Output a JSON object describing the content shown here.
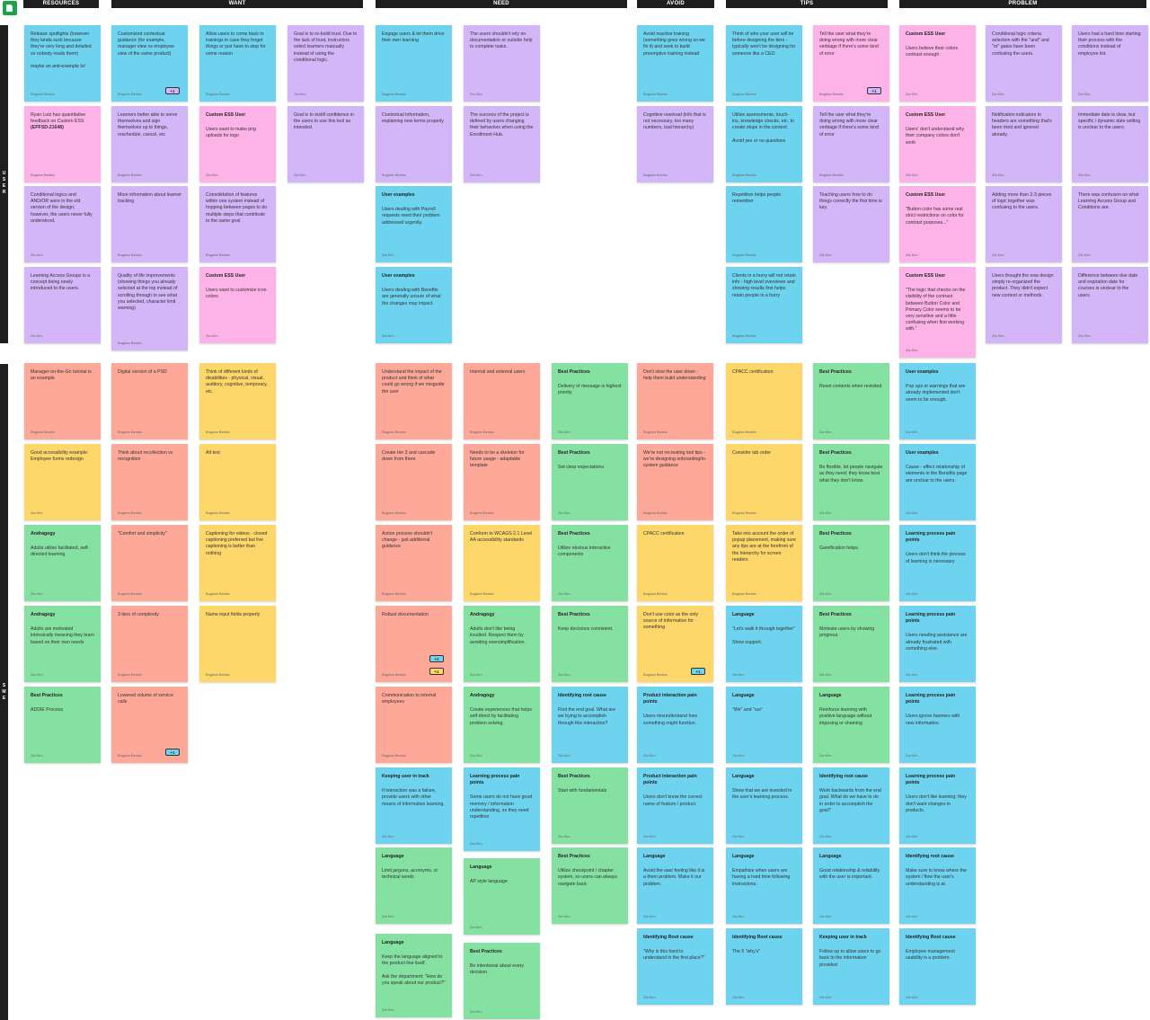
{
  "colors": {
    "blue": "#6dd3ee",
    "pink": "#fdb3e8",
    "purple": "#d3b6f7",
    "salmon": "#fea89a",
    "yellow": "#fdd76a",
    "green": "#85e1a1",
    "header": "#1e1e1e"
  },
  "headers": [
    "RESOURCES",
    "WANT",
    "NEED",
    "AVOID",
    "TIPS",
    "PROBLEM"
  ],
  "rows": [
    "USER",
    "SME"
  ],
  "notes": [
    {
      "c": "blue",
      "b": "Release spotlights (however they kinda suck because they're very long and detailed so nobody reads them)",
      "i": "maybe an anti-example lol",
      "a": "Bogdan Benkic"
    },
    {
      "c": "blue",
      "b": "Customized contextual guidance (for example, manager view vs employee view of the same product)",
      "a": "Bogdan Benkic",
      "badge": "+1",
      "bc": "purple"
    },
    {
      "c": "blue",
      "b": "Allow users to come back to trainings in case they forget things or just have to stop for some reason",
      "a": "Bogdan Benkic"
    },
    {
      "c": "purple",
      "b": "Goal is to re-build trust. Due to the lack of trust, instructors select learners manually instead of using the conditional logic.",
      "a": "Zia Kim"
    },
    {
      "c": "blue",
      "b": "Engage users & let them drive their own learning",
      "a": "Bogdan Benkic"
    },
    {
      "c": "purple",
      "b": "The users shouldn't rely on documentation or outside help to complete tasks.",
      "a": "Zia Kim"
    },
    {
      "c": "blue",
      "b": "Avoid reactive training (something goes wrong so we fix it) and seek to build preemptive training instead",
      "a": "Bogdan Benkic"
    },
    {
      "c": "blue",
      "b": "Think of who your user will be before designing the tiers - typically won't be designing for someone like a CEO",
      "a": "Bogdan Benkic"
    },
    {
      "c": "pink",
      "b": "Tell the user what they're doing wrong with more clear verbiage if there's some kind of error",
      "a": "Bogdan Benkic",
      "badge": "+1",
      "bc": "purple"
    },
    {
      "c": "pink",
      "t": "Custom ESS User",
      "b": "Users believe their colors contrast enough",
      "a": "Zia Kim"
    },
    {
      "c": "purple",
      "b": "Conditional logic criteria selection with the \"and\" and \"or\" gates have been confusing the users.",
      "a": "Zia Kim"
    },
    {
      "c": "purple",
      "b": "Users had a hard time starting their process with the conditions instead of employee list.",
      "a": "Zia Kim"
    },
    {
      "c": "pink",
      "b": "Ryan Lutz has quantitative feedback on Custom ESS",
      "bb": "(EPFSD-21648)",
      "a": "Bogdan Benkic"
    },
    {
      "c": "purple",
      "b": "Learners better able to serve themselves and sign themselves up to things, reschedule, cancel, etc",
      "a": "Bogdan Benkic"
    },
    {
      "c": "pink",
      "t": "Custom ESS User",
      "b": "Users want to make png uploads for logo",
      "a": "Zia Kim"
    },
    {
      "c": "purple",
      "b": "Goal is to instill confidence in the users to use this tool as intended.",
      "a": "Zia Kim"
    },
    {
      "c": "purple",
      "b": "Contextual information, explaining new terms properly",
      "a": "Bogdan Benkic"
    },
    {
      "c": "purple",
      "b": "The success of the project is defined by users changing their behaviors when using the Enrollment Hub.",
      "a": "Zia Kim"
    },
    {
      "c": "purple",
      "b": "Cognitive overload (info that is not necessary, too many numbers, bad hierarchy)",
      "a": "Bogdan Benkic"
    },
    {
      "c": "blue",
      "b": "Utilize assessments, touch-ins, knowledge checks, etc. to create stops in the content",
      "i": "Avoid yes or no questions",
      "a": "Bogdan Benkic"
    },
    {
      "c": "purple",
      "b": "Tell the user what they're doing wrong with more clear verbiage if there's some kind of error",
      "a": "Bogdan Benkic"
    },
    {
      "c": "pink",
      "t": "Custom ESS User",
      "b": "Users' don't understand why their company colors don't work",
      "a": "Zia Kim"
    },
    {
      "c": "purple",
      "b": "Notification indicators in headers are something that's been tried and ignored already.",
      "a": "Zia Kim"
    },
    {
      "c": "purple",
      "b": "Immediate date is clear, but specific / dynamic date setting is unclear to the users.",
      "a": "Zia Kim"
    },
    {
      "c": "purple",
      "b": "Conditional logics and AND/OR were in the old version of the design; however, the users never fully understood.",
      "a": "Zia Kim"
    },
    {
      "c": "purple",
      "b": "More information about learner tracking",
      "a": "Bogdan Benkic"
    },
    {
      "c": "purple",
      "b": "Consolidation of features within one system instead of hopping between pages to do multiple steps that contribute to the same goal",
      "a": "Bogdan Benkic"
    },
    {
      "c": "blue",
      "t": "User examples",
      "b": "Users dealing with Payroll requests need their problem addressed urgently.",
      "a": "Zia Kim"
    },
    {
      "c": "blue",
      "b": "Repetition helps people remember",
      "a": "Bogdan Benkic"
    },
    {
      "c": "purple",
      "b": "Teaching users how to do things correctly the first time is key.",
      "a": "Zia Kim"
    },
    {
      "c": "pink",
      "t": "Custom ESS User",
      "b": "\"Button color has some real strict restrictions on color for contrast purposes...\"",
      "a": "Zia Kim"
    },
    {
      "c": "purple",
      "b": "Adding more than 2-3 pieces of logic together was confusing to the users.",
      "a": "Zia Kim"
    },
    {
      "c": "purple",
      "b": "There was confusion on what Learning Access Group and Conditions are.",
      "a": "Zia Kim"
    },
    {
      "c": "purple",
      "b": "Learning Access Groups is a concept being newly introduced to the users.",
      "a": "Zia Kim"
    },
    {
      "c": "purple",
      "b": "Quality of life improvements (showing things you already selected at the top instead of scrolling through to see what you selected, character limit warning)",
      "a": "Bogdan Benkic"
    },
    {
      "c": "pink",
      "t": "Custom ESS User",
      "b": "Users want to customize icon colors",
      "a": "Zia Kim"
    },
    {
      "c": "blue",
      "t": "User examples",
      "b": "Users dealing with Benefits are generally unsure of what the changes may impact.",
      "a": "Zia Kim"
    },
    {
      "c": "blue",
      "b": "Clients in a hurry will not retain info - high level overviews and showing results first helps retain people in a hurry",
      "a": "Bogdan Benkic"
    },
    {
      "c": "pink",
      "t": "Custom ESS User",
      "b": "\"The logic that checks on the visibility of the contrast between Button Color and Primary Color seems to be very sensitive and a little confusing when first working with.\"",
      "a": "Zia Kim"
    },
    {
      "c": "purple",
      "b": "Users thought the now design simply re-organized the product. They didn't expect new content or methods.",
      "a": "Zia Kim"
    },
    {
      "c": "purple",
      "b": "Difference between due date and expiration date for courses is unclear to the users.",
      "a": "Zia Kim"
    },
    {
      "c": "salmon",
      "b": "Manager-on-the-Go tutorial is an example",
      "a": "Bogdan Benkic"
    },
    {
      "c": "salmon",
      "b": "Digital version of a PSD",
      "a": "Bogdan Benkic"
    },
    {
      "c": "yellow",
      "b": "Think of different kinds of disabilities - physical, visual, auditory, cognitive, temporary, etc.",
      "a": "Bogdan Benkic"
    },
    {
      "c": "salmon",
      "b": "Understand the impact of the product and think of what could go wrong if we misguide the user",
      "a": "Bogdan Benkic"
    },
    {
      "c": "salmon",
      "b": "Internal and external users",
      "a": "Bogdan Benkic"
    },
    {
      "c": "green",
      "t": "Best Practices",
      "b": "Delivery of message is highest priority",
      "a": "Zia Kim"
    },
    {
      "c": "salmon",
      "b": "Don't slow the user down - help them build understanding",
      "a": "Bogdan Benkic"
    },
    {
      "c": "yellow",
      "b": "CPACC certification",
      "a": "Bogdan Benkic"
    },
    {
      "c": "green",
      "t": "Best Practices",
      "b": "Reset contents when revisited",
      "a": "Zia Kim"
    },
    {
      "c": "blue",
      "t": "User examples",
      "b": "Pop ups or warnings that are already implemented don't seem to be enough.",
      "a": "Zia Kim"
    },
    {
      "c": "yellow",
      "b": "Good accessibility example: Employee forms redesign",
      "a": "Zia Kim"
    },
    {
      "c": "salmon",
      "b": "Think about recollection vs recognition",
      "a": "Bogdan Benkic"
    },
    {
      "c": "yellow",
      "b": "Alt text",
      "a": "Bogdan Benkic"
    },
    {
      "c": "salmon",
      "b": "Create tier 3 and cascade down from there",
      "a": "Bogdan Benkic"
    },
    {
      "c": "salmon",
      "b": "Needs to be a skeleton for future usage - adaptable template",
      "a": "Bogdan Benkic"
    },
    {
      "c": "green",
      "t": "Best Practices",
      "b": "Set clear expectations",
      "a": "Zia Kim"
    },
    {
      "c": "salmon",
      "b": "We're not recreating tool tips - we're designing onboarding/in-system guidance",
      "a": "Bogdan Benkic"
    },
    {
      "c": "yellow",
      "b": "Consider tab order",
      "a": "Bogdan Benkic"
    },
    {
      "c": "green",
      "t": "Best Practices",
      "b": "Be flexible, let people navigate as they need; they know best what they don't know.",
      "a": "Zia Kim"
    },
    {
      "c": "blue",
      "t": "User examples",
      "b": "Cause - effect relationship of elements in the Benefits page are unclear to the users.",
      "a": "Zia Kim"
    },
    {
      "c": "green",
      "t": "Andragogy",
      "b": "Adults utilize facilitated, self-directed learning",
      "a": "Zia Kim"
    },
    {
      "c": "salmon",
      "b": "\"Comfort and simplicity\"",
      "a": "Bogdan Benkic"
    },
    {
      "c": "yellow",
      "b": "Captioning for videos - closed captioning preferred but live captioning is better than nothing",
      "a": "Bogdan Benkic"
    },
    {
      "c": "salmon",
      "b": "Action process shouldn't change - just additional guidance",
      "a": "Bogdan Benkic"
    },
    {
      "c": "yellow",
      "b": "Conform to WCAGS 2.1 Level AA accessibility standards",
      "a": "Bogdan Benkic"
    },
    {
      "c": "green",
      "t": "Best Practices",
      "b": "Utilize obvious interactive components",
      "a": "Zia Kim"
    },
    {
      "c": "yellow",
      "b": "CPACC certification",
      "a": "Bogdan Benkic"
    },
    {
      "c": "yellow",
      "b": "Take into account the order of popup placement, making sure any tips are at the forefront of the hierarchy for screen readers",
      "a": "Bogdan Benkic"
    },
    {
      "c": "green",
      "t": "Best Practices",
      "b": "Gamification helps.",
      "a": "Zia Kim"
    },
    {
      "c": "blue",
      "t": "Learning process pain points",
      "b": "Users don't think the process of learning is necessary",
      "a": "Zia Kim"
    },
    {
      "c": "green",
      "t": "Andragogy",
      "b": "Adults are motivated intrinsically meaning they learn based on their own needs",
      "a": "Zia Kim"
    },
    {
      "c": "salmon",
      "b": "3 tiers of complexity",
      "a": "Bogdan Benkic"
    },
    {
      "c": "yellow",
      "b": "Name input fields properly",
      "a": "Bogdan Benkic"
    },
    {
      "c": "salmon",
      "b": "Robust documentation",
      "a": "Bogdan Benkic",
      "badge": "+2",
      "bc": "blue",
      "badge2": "+1",
      "bc2": "yellow"
    },
    {
      "c": "green",
      "t": "Andragogy",
      "b": "Adults don't like being insulted. Respect them by avoiding oversimplification.",
      "a": "Zia Kim"
    },
    {
      "c": "green",
      "t": "Best Practices",
      "b": "Keep decisions consistent.",
      "a": "Zia Kim"
    },
    {
      "c": "yellow",
      "b": "Don't use color as the only source of information for something",
      "a": "Bogdan Benkic",
      "badge": "+1",
      "bc": "blue"
    },
    {
      "c": "blue",
      "t": "Language",
      "b": "\"Let's walk it through together\"\n\nShow support.",
      "a": "Zia Kim"
    },
    {
      "c": "green",
      "t": "Best Practices",
      "b": "Motivate users by showing progress.",
      "a": "Zia Kim"
    },
    {
      "c": "blue",
      "t": "Learning process pain points",
      "b": "Users needing assistance are already frustrated with something else.",
      "a": "Zia Kim"
    },
    {
      "c": "green",
      "t": "Best Practices",
      "b": "ADDIE Process",
      "a": "Zia Kim"
    },
    {
      "c": "salmon",
      "b": "Lowered volume of service calls",
      "a": "Bogdan Benkic",
      "badge": "+1",
      "bc": "blue"
    },
    {
      "c": "salmon",
      "b": "Communication to internal employees",
      "a": "Bogdan Benkic"
    },
    {
      "c": "green",
      "t": "Andragogy",
      "b": "Create experiences that helps self-direct by facilitating problem solving.",
      "a": "Zia Kim"
    },
    {
      "c": "blue",
      "t": "Identifying root cause",
      "b": "Find the end goal. What are we trying to accomplish through this interaction?",
      "a": "Zia Kim"
    },
    {
      "c": "blue",
      "t": "Product interaction pain points",
      "b": "Users misunderstand how something might function.",
      "a": "Zia Kim"
    },
    {
      "c": "blue",
      "t": "Language",
      "b": "\"We\" and \"our\"",
      "a": "Zia Kim"
    },
    {
      "c": "green",
      "t": "Language",
      "b": "Reinforce learning with positive language without imposing or shaming",
      "a": "Zia Kim"
    },
    {
      "c": "blue",
      "t": "Learning process pain points",
      "b": "Users ignore banners with new information.",
      "a": "Zia Kim"
    },
    {
      "c": "blue",
      "t": "Keeping user in track",
      "b": "If interaction was a failure, provide users with other means of information learning.",
      "a": "Zia Kim"
    },
    {
      "c": "blue",
      "t": "Learning process pain points",
      "b": "Some users do not have good memory / information understanding, so they need repetition",
      "a": "Zia Kim"
    },
    {
      "c": "green",
      "t": "Best Practices",
      "b": "Start with fundamentals",
      "a": "Zia Kim"
    },
    {
      "c": "blue",
      "t": "Product interaction pain points",
      "b": "Users don't know the correct name of feature / product.",
      "a": "Zia Kim"
    },
    {
      "c": "blue",
      "t": "Language",
      "b": "Show that we are invested in the user's learning process.",
      "a": "Zia Kim"
    },
    {
      "c": "blue",
      "t": "Identifying root cause",
      "b": "Work backwards from the end goal. What do we have to do in order to accomplish the goal?",
      "a": "Zia Kim"
    },
    {
      "c": "blue",
      "t": "Learning process pain points",
      "b": "Users don't like learning; they don't want changes in products.",
      "a": "Zia Kim"
    },
    {
      "c": "green",
      "t": "Language",
      "b": "Limit jargons, acronyms, or technical words",
      "a": "Zia Kim"
    },
    {
      "c": "green",
      "t": "Language",
      "b": "AP style language",
      "a": "Zia Kim"
    },
    {
      "c": "green",
      "t": "Best Practices",
      "b": "Utilize checkpoint / chapter system, so users can always navigate back",
      "a": "Zia Kim"
    },
    {
      "c": "blue",
      "t": "Language",
      "b": "Avoid the user feeling like it is a them problem. Make it our problem.",
      "a": "Zia Kim"
    },
    {
      "c": "blue",
      "t": "Language",
      "b": "Empathize when users are having a hard time following instructions.",
      "a": "Zia Kim"
    },
    {
      "c": "blue",
      "t": "Language",
      "b": "Good relationship & reliability with the user is important.",
      "a": "Zia Kim"
    },
    {
      "c": "blue",
      "t": "Identifying root cause",
      "b": "Make sure to know where the system / flow the user's understanding is at.",
      "a": "Zia Kim"
    },
    {
      "c": "blue",
      "t": "Identifying Root cause",
      "b": "\"Why is this hard to understand in the first place?\"",
      "a": "Zia Kim"
    },
    {
      "c": "blue",
      "t": "Identifying Root cause",
      "b": "The 5 \"why's\"",
      "a": "Zia Kim"
    },
    {
      "c": "blue",
      "t": "Keeping user in track",
      "b": "Follow up to allow users to go back to the information provided",
      "a": "Zia Kim"
    },
    {
      "c": "blue",
      "t": "Identifying Root cause",
      "b": "Employee management usability is a problem.",
      "a": "Zia Kim"
    },
    {
      "c": "green",
      "t": "Language",
      "b": "Keep the language aligned to the product line itself.\n\nAsk the department: \"How do you speak about our product?\"",
      "a": "Zia Kim"
    },
    {
      "c": "green",
      "t": "Best Practices",
      "b": "Be intentional about every decision.",
      "a": "Zia Kim"
    }
  ]
}
